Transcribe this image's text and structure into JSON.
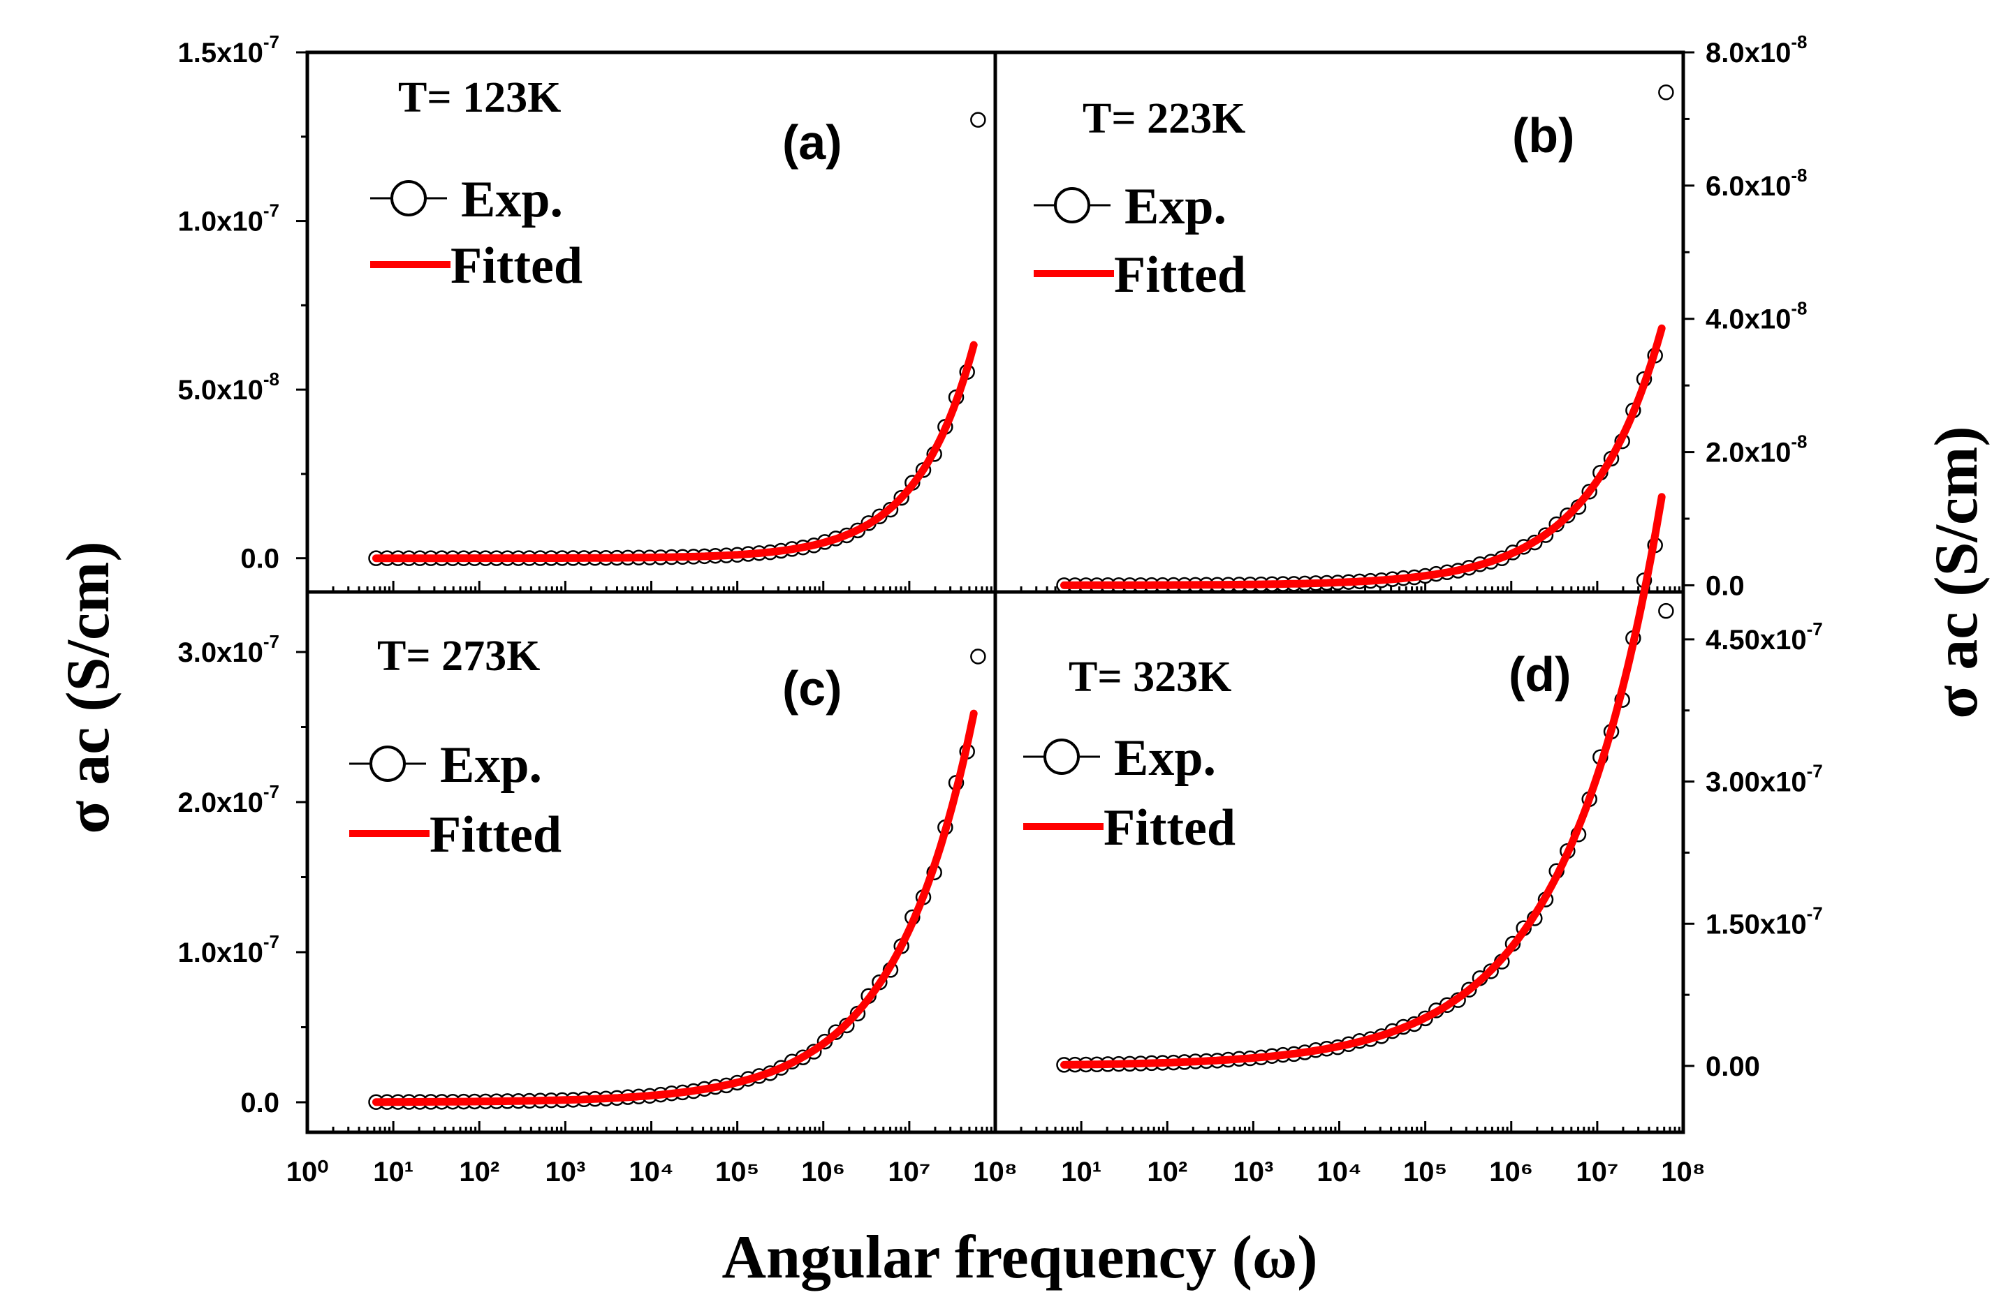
{
  "figure": {
    "xlabel": "Angular frequency (ω)",
    "ylabel_left": "σ ac (S/cm)",
    "ylabel_right": "σ ac (S/cm)",
    "legend_exp": "Exp.",
    "legend_fit": "Fitted"
  },
  "chart_data": [
    {
      "id": "a",
      "type": "scatter",
      "panel_label": "(a)",
      "temperature_label": "T= 123K",
      "xscale": "log",
      "xlim": [
        1,
        100000000
      ],
      "ylim": [
        -1e-08,
        1.5e-07
      ],
      "x_tick_labels": [
        "10⁰",
        "10¹",
        "10²",
        "10³",
        "10⁴",
        "10⁵",
        "10⁶",
        "10⁷",
        "10⁸"
      ],
      "y_ticks": [
        0,
        5e-08,
        1e-07,
        1.5e-07
      ],
      "y_tick_labels": [
        [
          "0.0",
          ""
        ],
        [
          "5.0x10",
          "-8"
        ],
        [
          "1.0x10",
          "-7"
        ],
        [
          "1.5x10",
          "-7"
        ]
      ],
      "y_axis_side": "left",
      "series": [
        {
          "name": "Exp.",
          "x_log_min": 0.8,
          "x_log_max": 7.8,
          "points": 56,
          "y_at_x_max": 1.3e-07
        },
        {
          "name": "Fitted",
          "model": "σ = A·ω^n",
          "A": 5.8e-13,
          "n": 0.65,
          "x_log_min": 0.8,
          "x_log_max": 7.75
        }
      ]
    },
    {
      "id": "b",
      "type": "scatter",
      "panel_label": "(b)",
      "temperature_label": "T= 223K",
      "xscale": "log",
      "xlim": [
        1,
        100000000
      ],
      "ylim": [
        -1e-09,
        8e-08
      ],
      "x_tick_labels": [
        "",
        "10¹",
        "10²",
        "10³",
        "10⁴",
        "10⁵",
        "10⁶",
        "10⁷",
        "10⁸"
      ],
      "y_ticks": [
        0,
        2e-08,
        4e-08,
        6e-08,
        8e-08
      ],
      "y_tick_labels": [
        [
          "0.0",
          ""
        ],
        [
          "2.0x10",
          "-8"
        ],
        [
          "4.0x10",
          "-8"
        ],
        [
          "6.0x10",
          "-8"
        ],
        [
          "8.0x10",
          "-8"
        ]
      ],
      "y_axis_side": "right",
      "series": [
        {
          "name": "Exp.",
          "x_log_min": 0.8,
          "x_log_max": 7.8,
          "points": 56,
          "y_at_x_max": 7.4e-08
        },
        {
          "name": "Fitted",
          "model": "σ = A·ω^n",
          "A": 3.6e-12,
          "n": 0.52,
          "x_log_min": 0.8,
          "x_log_max": 7.75
        }
      ]
    },
    {
      "id": "c",
      "type": "scatter",
      "panel_label": "(c)",
      "temperature_label": "T= 273K",
      "xscale": "log",
      "xlim": [
        1,
        100000000
      ],
      "ylim": [
        -2e-08,
        3.4e-07
      ],
      "x_tick_labels": [
        "10⁰",
        "10¹",
        "10²",
        "10³",
        "10⁴",
        "10⁵",
        "10⁶",
        "10⁷",
        "10⁸"
      ],
      "y_ticks": [
        0,
        1e-07,
        2e-07,
        3e-07
      ],
      "y_tick_labels": [
        [
          "0.0",
          ""
        ],
        [
          "1.0x10",
          "-7"
        ],
        [
          "2.0x10",
          "-7"
        ],
        [
          "3.0x10",
          "-7"
        ]
      ],
      "y_axis_side": "left",
      "series": [
        {
          "name": "Exp.",
          "x_log_min": 0.8,
          "x_log_max": 7.8,
          "points": 56,
          "y_at_x_max": 2.97e-07
        },
        {
          "name": "Fitted",
          "model": "σ = A·ω^n",
          "A": 5.9e-11,
          "n": 0.47,
          "x_log_min": 0.8,
          "x_log_max": 7.75
        }
      ]
    },
    {
      "id": "d",
      "type": "scatter",
      "panel_label": "(d)",
      "temperature_label": "T= 323K",
      "xscale": "log",
      "xlim": [
        1,
        100000000
      ],
      "ylim": [
        -7e-08,
        5e-07
      ],
      "x_tick_labels": [
        "",
        "10¹",
        "10²",
        "10³",
        "10⁴",
        "10⁵",
        "10⁶",
        "10⁷",
        "10⁸"
      ],
      "y_ticks": [
        0,
        1.5e-07,
        3e-07,
        4.5e-07
      ],
      "y_tick_labels": [
        [
          "0.00",
          ""
        ],
        [
          "1.50x10",
          "-7"
        ],
        [
          "3.00x10",
          "-7"
        ],
        [
          "4.50x10",
          "-7"
        ]
      ],
      "y_axis_side": "right",
      "series": [
        {
          "name": "Exp.",
          "x_log_min": 0.8,
          "x_log_max": 7.8,
          "points": 56,
          "y_at_x_max": 4.8e-07
        },
        {
          "name": "Fitted",
          "model": "σ = A·ω^n",
          "A": 5.7e-10,
          "n": 0.39,
          "x_log_min": 0.8,
          "x_log_max": 7.75
        }
      ]
    }
  ],
  "colors": {
    "fit": "#ff0000",
    "marker_fill": "#ffffff",
    "axis": "#000000"
  }
}
